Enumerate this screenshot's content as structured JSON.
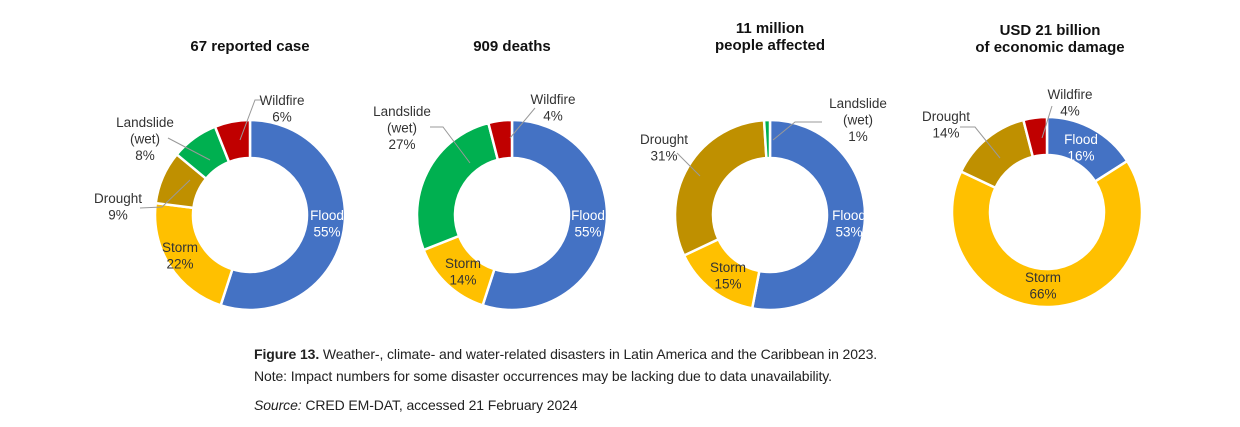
{
  "chart_data": [
    {
      "type": "pie",
      "title": "67 reported case",
      "categories": [
        "Flood",
        "Storm",
        "Drought",
        "Landslide (wet)",
        "Wildfire"
      ],
      "values": [
        55,
        22,
        9,
        8,
        6
      ],
      "unit": "%"
    },
    {
      "type": "pie",
      "title": "909 deaths",
      "categories": [
        "Flood",
        "Storm",
        "Landslide (wet)",
        "Wildfire"
      ],
      "values": [
        55,
        14,
        27,
        4
      ],
      "unit": "%"
    },
    {
      "type": "pie",
      "title": "11 million\npeople affected",
      "categories": [
        "Flood",
        "Storm",
        "Drought",
        "Landslide (wet)"
      ],
      "values": [
        53,
        15,
        31,
        1
      ],
      "unit": "%"
    },
    {
      "type": "pie",
      "title": "USD 21 billion\nof economic damage",
      "categories": [
        "Flood",
        "Storm",
        "Drought",
        "Wildfire"
      ],
      "values": [
        16,
        66,
        14,
        4
      ],
      "unit": "%"
    }
  ],
  "colors": {
    "Flood": "#4472c4",
    "Storm": "#ffc000",
    "Drought": "#bf9000",
    "Landslide (wet)": "#00b050",
    "Wildfire": "#c00000"
  },
  "caption": {
    "figure_label": "Figure 13.",
    "figure_text": " Weather-, climate- and water-related disasters in Latin America and the Caribbean in 2023.",
    "note": "Note: Impact numbers for some disaster occurrences may be lacking due to data unavailability.",
    "source_label": "Source:",
    "source_text": " CRED EM-DAT, accessed 21 February 2024"
  }
}
